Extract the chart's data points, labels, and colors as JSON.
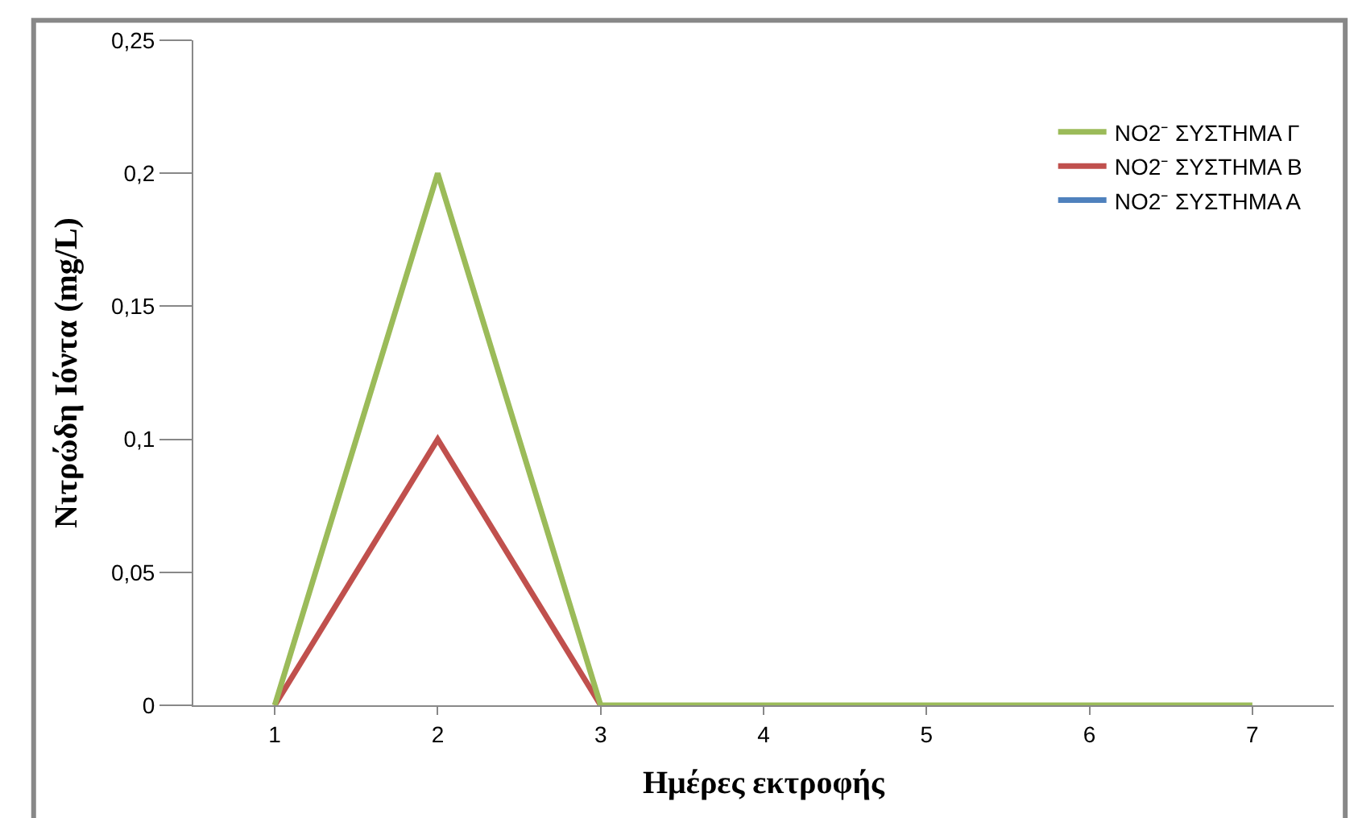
{
  "chart_data": {
    "type": "line",
    "xlabel": "Ημέρες εκτροφής",
    "ylabel": "Νιτρώδη Ιόντα (mg/L)",
    "categories": [
      "1",
      "2",
      "3",
      "4",
      "5",
      "6",
      "7"
    ],
    "series": [
      {
        "name": "NO2⁻ ΣΥΣΤΗΜΑ Γ",
        "color": "#9bbb59",
        "values": [
          0,
          0.2,
          0,
          0,
          0,
          0,
          0
        ]
      },
      {
        "name": "NO2⁻ ΣΥΣΤΗΜΑ Β",
        "color": "#c0504d",
        "values": [
          0,
          0.1,
          0,
          null,
          null,
          null,
          null
        ]
      },
      {
        "name": "NO2⁻ ΣΥΣΤΗΜΑ Α",
        "color": "#4f81bd",
        "values": [
          null,
          null,
          null,
          null,
          null,
          null,
          null
        ]
      }
    ],
    "ylim": [
      0,
      0.25
    ],
    "yticks": [
      {
        "value": 0,
        "label": "0"
      },
      {
        "value": 0.05,
        "label": "0,05"
      },
      {
        "value": 0.1,
        "label": "0,1"
      },
      {
        "value": 0.15,
        "label": "0,15"
      },
      {
        "value": 0.2,
        "label": "0,2"
      },
      {
        "value": 0.25,
        "label": "0,25"
      }
    ],
    "grid": false,
    "legend": "top right",
    "marker": "none",
    "line_style": "solid"
  }
}
